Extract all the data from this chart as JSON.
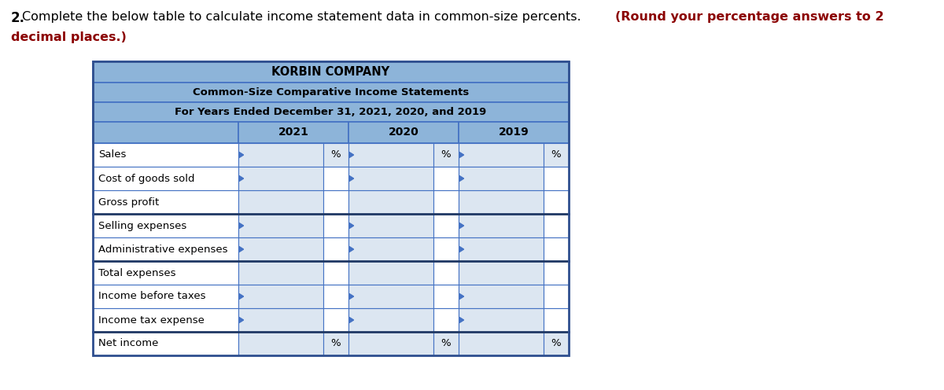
{
  "title1": "KORBIN COMPANY",
  "title2": "Common-Size Comparative Income Statements",
  "title3": "For Years Ended December 31, 2021, 2020, and 2019",
  "header_bg": "#8DB4D9",
  "input_bg": "#DCE6F1",
  "white_bg": "#FFFFFF",
  "border_color": "#4472C4",
  "thick_border_color": "#1F3864",
  "years": [
    "2021",
    "2020",
    "2019"
  ],
  "rows": [
    "Sales",
    "Cost of goods sold",
    "Gross profit",
    "Selling expenses",
    "Administrative expenses",
    "Total expenses",
    "Income before taxes",
    "Income tax expense",
    "Net income"
  ],
  "has_percent_label": [
    true,
    false,
    false,
    false,
    false,
    false,
    false,
    false,
    true
  ],
  "has_arrow": [
    true,
    true,
    false,
    true,
    true,
    false,
    true,
    true,
    false
  ],
  "thick_bottom": [
    false,
    false,
    true,
    false,
    true,
    false,
    false,
    true,
    false
  ],
  "instruction_normal": "2. Complete the below table to calculate income statement data in common-size percents. ",
  "instruction_bold": "(Round your percentage answers to 2",
  "instruction_bold2": "decimal places.)",
  "fig_bg": "#FFFFFF"
}
